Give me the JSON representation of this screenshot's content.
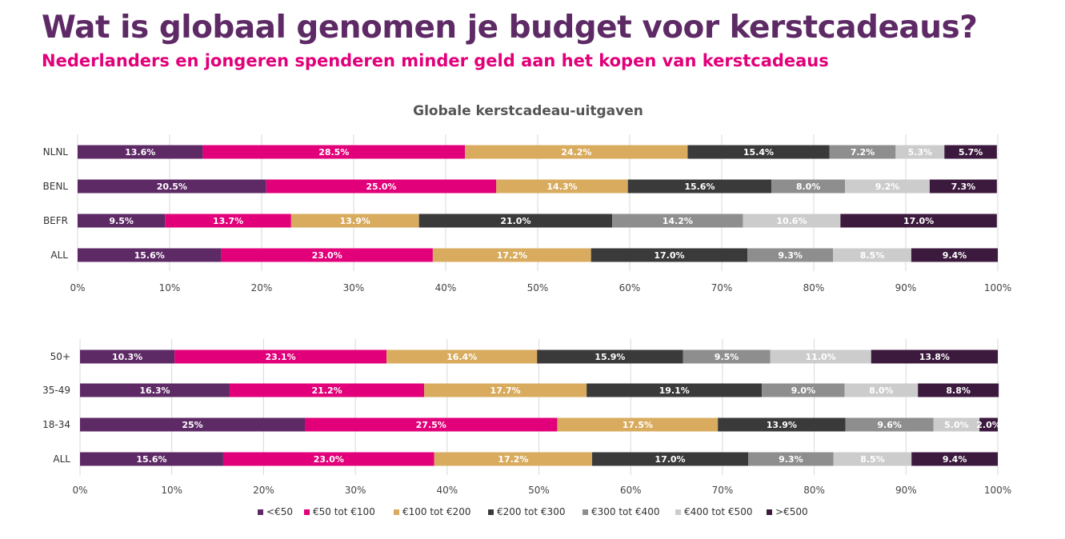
{
  "header": {
    "title": "Wat is globaal genomen je budget voor kerstcadeaus?",
    "subtitle": "Nederlanders en jongeren spenderen minder geld aan het kopen van kerstcadeaus"
  },
  "colors": {
    "<€50": "#5e2a66",
    "€50 tot €100": "#e2007a",
    "€100 tot €200": "#d8ab5e",
    "€200 tot €300": "#3a3a3a",
    "€300 tot €400": "#8e8e8e",
    "€400 tot €500": "#cccccc",
    ">€500": "#3c1a3e"
  },
  "chart_data": [
    {
      "type": "bar",
      "orientation": "horizontal-stacked-100",
      "title": "Globale kerstcadeau-uitgaven",
      "categories": [
        "NLNL",
        "BENL",
        "BEFR",
        "ALL"
      ],
      "series": [
        {
          "name": "<€50",
          "values": [
            13.6,
            20.5,
            9.5,
            15.6
          ],
          "labels": [
            "13.6%",
            "20.5%",
            "9.5%",
            "15.6%"
          ]
        },
        {
          "name": "€50 tot €100",
          "values": [
            28.5,
            25.0,
            13.7,
            23.0
          ],
          "labels": [
            "28.5%",
            "25.0%",
            "13.7%",
            "23.0%"
          ]
        },
        {
          "name": "€100 tot €200",
          "values": [
            24.2,
            14.3,
            13.9,
            17.2
          ],
          "labels": [
            "24.2%",
            "14.3%",
            "13.9%",
            "17.2%"
          ]
        },
        {
          "name": "€200 tot €300",
          "values": [
            15.4,
            15.6,
            21.0,
            17.0
          ],
          "labels": [
            "15.4%",
            "15.6%",
            "21.0%",
            "17.0%"
          ]
        },
        {
          "name": "€300 tot €400",
          "values": [
            7.2,
            8.0,
            14.2,
            9.3
          ],
          "labels": [
            "7.2%",
            "8.0%",
            "14.2%",
            "9.3%"
          ]
        },
        {
          "name": "€400 tot €500",
          "values": [
            5.3,
            9.2,
            10.6,
            8.5
          ],
          "labels": [
            "5.3%",
            "9.2%",
            "10.6%",
            "8.5%"
          ]
        },
        {
          "name": ">€500",
          "values": [
            5.7,
            7.3,
            17.0,
            9.4
          ],
          "labels": [
            "5.7%",
            "7.3%",
            "17.0%",
            "9.4%"
          ]
        }
      ],
      "xlim": [
        0,
        100
      ],
      "ticks": [
        "0%",
        "10%",
        "20%",
        "30%",
        "40%",
        "50%",
        "60%",
        "70%",
        "80%",
        "90%",
        "100%"
      ],
      "grid": true
    },
    {
      "type": "bar",
      "orientation": "horizontal-stacked-100",
      "title": "",
      "categories": [
        "50+",
        "35-49",
        "18-34",
        "ALL"
      ],
      "series": [
        {
          "name": "<€50",
          "values": [
            10.3,
            16.3,
            24.5,
            15.6
          ],
          "labels": [
            "10.3%",
            "16.3%",
            "25%",
            "15.6%"
          ]
        },
        {
          "name": "€50 tot €100",
          "values": [
            23.1,
            21.2,
            27.5,
            23.0
          ],
          "labels": [
            "23.1%",
            "21.2%",
            "27.5%",
            "23.0%"
          ]
        },
        {
          "name": "€100 tot €200",
          "values": [
            16.4,
            17.7,
            17.5,
            17.2
          ],
          "labels": [
            "16.4%",
            "17.7%",
            "17.5%",
            "17.2%"
          ]
        },
        {
          "name": "€200 tot €300",
          "values": [
            15.9,
            19.1,
            13.9,
            17.0
          ],
          "labels": [
            "15.9%",
            "19.1%",
            "13.9%",
            "17.0%"
          ]
        },
        {
          "name": "€300 tot €400",
          "values": [
            9.5,
            9.0,
            9.6,
            9.3
          ],
          "labels": [
            "9.5%",
            "9.0%",
            "9.6%",
            "9.3%"
          ]
        },
        {
          "name": "€400 tot €500",
          "values": [
            11.0,
            8.0,
            5.0,
            8.5
          ],
          "labels": [
            "11.0%",
            "8.0%",
            "5.0%",
            "8.5%"
          ]
        },
        {
          "name": ">€500",
          "values": [
            13.8,
            8.8,
            2.0,
            9.4
          ],
          "labels": [
            "13.8%",
            "8.8%",
            "2.0%",
            "9.4%"
          ]
        }
      ],
      "xlim": [
        0,
        100
      ],
      "ticks": [
        "0%",
        "10%",
        "20%",
        "30%",
        "40%",
        "50%",
        "60%",
        "70%",
        "80%",
        "90%",
        "100%"
      ],
      "grid": true
    }
  ],
  "legend": {
    "placement": "bottom",
    "entries": [
      "<€50",
      "€50 tot €100",
      "€100 tot €200",
      "€200 tot €300",
      "€300 tot €400",
      "€400 tot €500",
      ">€500"
    ]
  }
}
